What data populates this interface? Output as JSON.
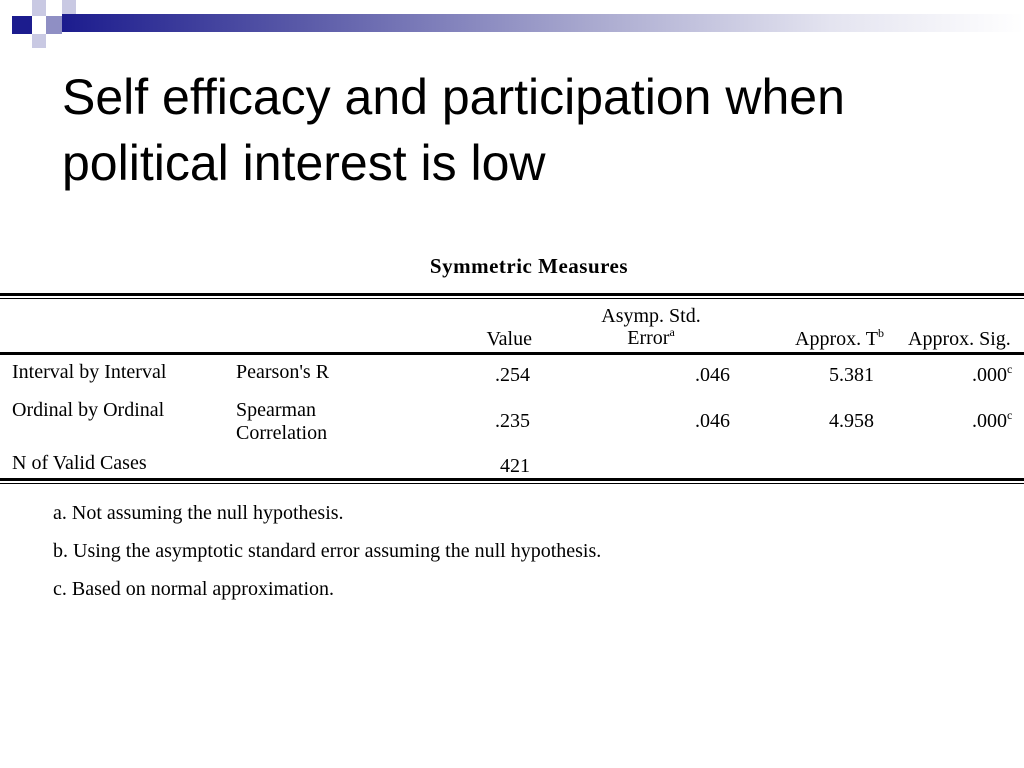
{
  "slide": {
    "title": "Self efficacy and participation when political interest is low"
  },
  "table": {
    "title": "Symmetric Measures",
    "headers": {
      "value": "Value",
      "asymp_std_error_line1": "Asymp. Std.",
      "asymp_std_error_line2": "Error",
      "asymp_std_error_sup": "a",
      "approx_t": "Approx. T",
      "approx_t_sup": "b",
      "approx_sig": "Approx. Sig."
    },
    "rows": [
      {
        "group": "Interval by Interval",
        "measure": "Pearson's R",
        "measure_line2": "",
        "value": ".254",
        "asymp_std_error": ".046",
        "approx_t": "5.381",
        "approx_sig": ".000",
        "approx_sig_sup": "c"
      },
      {
        "group": "Ordinal by Ordinal",
        "measure": "Spearman",
        "measure_line2": "Correlation",
        "value": ".235",
        "asymp_std_error": ".046",
        "approx_t": "4.958",
        "approx_sig": ".000",
        "approx_sig_sup": "c"
      },
      {
        "group": "N of Valid Cases",
        "measure": "",
        "measure_line2": "",
        "value": "421",
        "asymp_std_error": "",
        "approx_t": "",
        "approx_sig": "",
        "approx_sig_sup": ""
      }
    ],
    "footnotes": [
      "a. Not assuming the null hypothesis.",
      "b. Using the asymptotic standard error assuming the null hypothesis.",
      "c. Based on normal approximation."
    ]
  },
  "colors": {
    "accent_dark": "#1c1c8e",
    "text": "#000000",
    "background": "#ffffff"
  }
}
